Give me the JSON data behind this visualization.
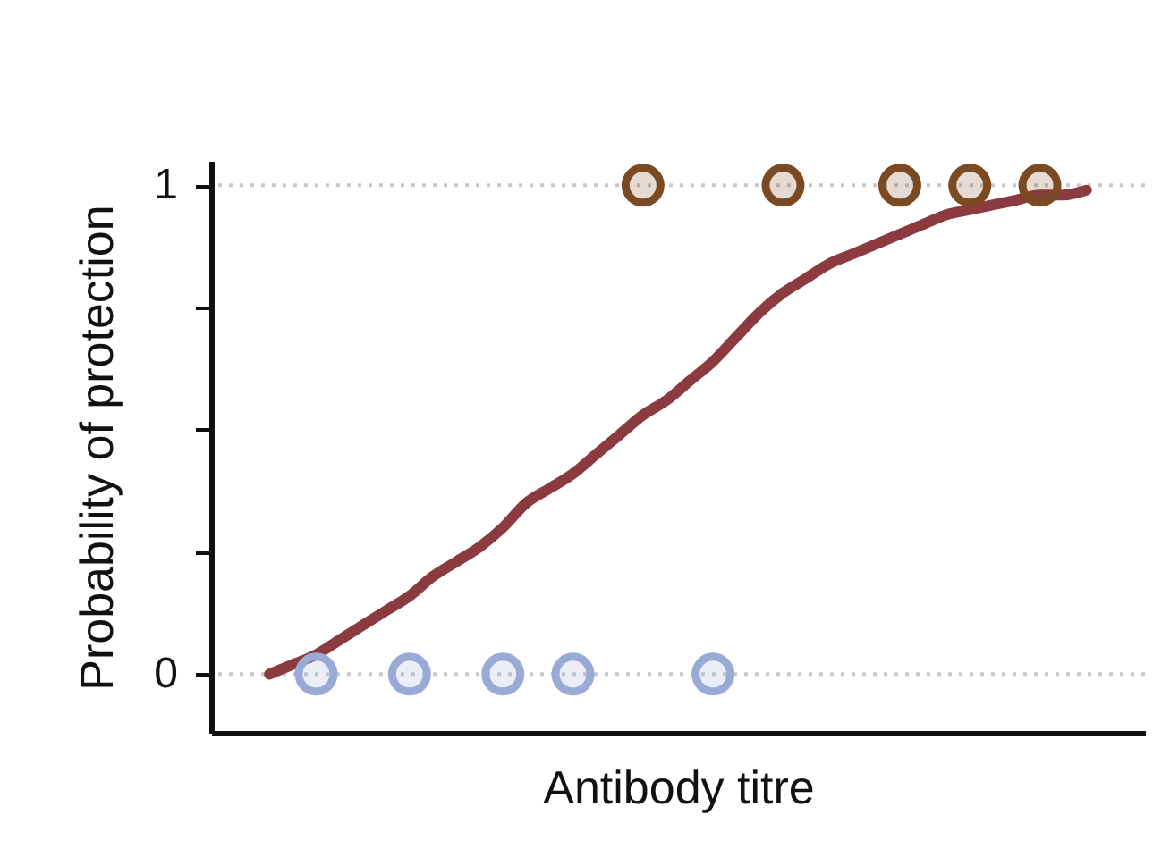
{
  "chart_data": {
    "type": "scatter",
    "xlabel": "Antibody titre",
    "ylabel": "Probability of protection",
    "categories": [
      null,
      null,
      null,
      null,
      null,
      null,
      null,
      null,
      null,
      null,
      null,
      null,
      null,
      null,
      null,
      null,
      null,
      null,
      null,
      null,
      null,
      null,
      null,
      null,
      null,
      null,
      null,
      null,
      null,
      null,
      null,
      null,
      null,
      null,
      null,
      null,
      null,
      null,
      null,
      null
    ],
    "ylim": [
      -0.12,
      1.05
    ],
    "yticks": [
      0,
      {
        "value": 0.25,
        "label": null
      },
      {
        "value": 0.5,
        "label": null
      },
      {
        "value": 0.75,
        "label": null
      },
      1
    ],
    "tick_labels": "y",
    "ref_lines": [
      {
        "axis": "y",
        "value": 0,
        "label": null,
        "color": "#c8c8c8",
        "line_style": "dotted"
      },
      {
        "axis": "y",
        "value": 1,
        "label": null,
        "color": "#c8c8c8",
        "line_style": "dotted"
      }
    ],
    "series": [
      {
        "type": "line",
        "color": "#8b3a3f",
        "values": [
          null,
          null,
          0,
          0.02,
          0.04,
          0.07,
          0.1,
          0.13,
          0.16,
          0.2,
          0.23,
          0.26,
          0.3,
          0.35,
          0.38,
          0.41,
          0.45,
          0.49,
          0.53,
          0.56,
          0.6,
          0.64,
          0.69,
          0.74,
          0.78,
          0.81,
          0.84,
          0.86,
          0.88,
          0.9,
          0.92,
          0.94,
          0.95,
          0.96,
          0.97,
          0.98,
          0.98,
          0.99,
          null,
          null
        ]
      },
      {
        "color": "#9aaad6",
        "marker": "circle",
        "values": [
          null,
          null,
          null,
          null,
          0,
          null,
          null,
          null,
          0,
          null,
          null,
          null,
          0,
          null,
          null,
          0,
          null,
          null,
          null,
          null,
          null,
          0,
          null,
          null,
          null,
          null,
          null,
          null,
          null,
          null,
          null,
          null,
          null,
          null,
          null,
          null,
          null,
          null,
          null,
          null
        ]
      },
      {
        "color": "#7b4a23",
        "marker": "circle",
        "values": [
          null,
          null,
          null,
          null,
          null,
          null,
          null,
          null,
          null,
          null,
          null,
          null,
          null,
          null,
          null,
          null,
          null,
          null,
          1,
          null,
          null,
          null,
          null,
          null,
          1,
          null,
          null,
          null,
          null,
          1,
          null,
          null,
          1,
          null,
          null,
          1,
          null,
          null,
          null,
          null
        ]
      }
    ]
  }
}
